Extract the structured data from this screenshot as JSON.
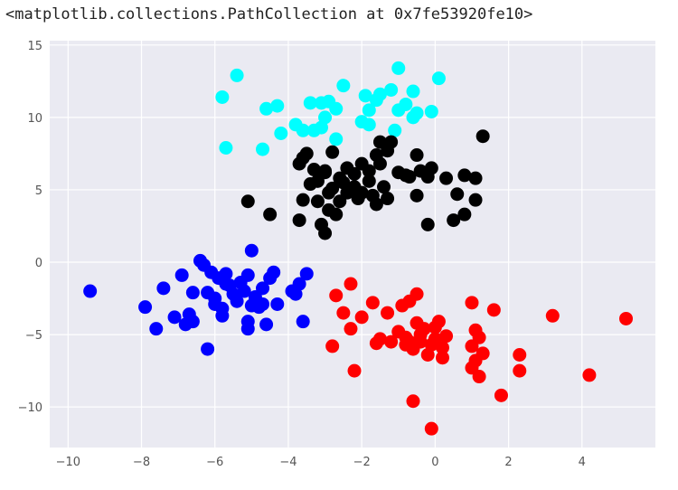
{
  "output_text": "<matplotlib.collections.PathCollection at 0x7fe53920fe10>",
  "chart_data": {
    "type": "scatter",
    "title": "",
    "xlabel": "",
    "ylabel": "",
    "xlim": [
      -10.5,
      6
    ],
    "ylim": [
      -12.8,
      15.3
    ],
    "xticks": [
      -10,
      -8,
      -6,
      -4,
      -2,
      0,
      2,
      4
    ],
    "yticks": [
      -10,
      -5,
      0,
      5,
      10,
      15
    ],
    "grid": true,
    "background": "#eaeaf2",
    "series": [
      {
        "color": "#00ffff",
        "points": [
          [
            -5.4,
            12.9
          ],
          [
            -5.8,
            11.4
          ],
          [
            -4.6,
            10.6
          ],
          [
            -4.3,
            10.8
          ],
          [
            -4.2,
            8.9
          ],
          [
            -3.8,
            9.5
          ],
          [
            -3.6,
            9.1
          ],
          [
            -3.4,
            11.0
          ],
          [
            -3.1,
            11.0
          ],
          [
            -2.9,
            11.1
          ],
          [
            -3.0,
            10.0
          ],
          [
            -2.7,
            10.6
          ],
          [
            -2.5,
            12.2
          ],
          [
            -3.1,
            9.3
          ],
          [
            -3.3,
            9.1
          ],
          [
            -2.7,
            8.5
          ],
          [
            -1.9,
            11.5
          ],
          [
            -1.6,
            11.2
          ],
          [
            -1.8,
            10.5
          ],
          [
            -1.5,
            11.6
          ],
          [
            -1.2,
            11.9
          ],
          [
            -1.0,
            10.5
          ],
          [
            -1.0,
            13.4
          ],
          [
            -0.8,
            10.9
          ],
          [
            -0.6,
            11.8
          ],
          [
            -0.6,
            10.0
          ],
          [
            -0.5,
            10.3
          ],
          [
            0.1,
            12.7
          ],
          [
            -0.1,
            10.4
          ],
          [
            -2.0,
            9.7
          ],
          [
            -1.8,
            9.5
          ],
          [
            -1.1,
            9.1
          ],
          [
            -5.7,
            7.9
          ],
          [
            -4.7,
            7.8
          ]
        ]
      },
      {
        "color": "#000000",
        "points": [
          [
            -5.1,
            4.2
          ],
          [
            -4.5,
            3.3
          ],
          [
            -3.7,
            6.8
          ],
          [
            -3.5,
            7.5
          ],
          [
            -3.3,
            6.4
          ],
          [
            -3.0,
            6.2
          ],
          [
            -3.2,
            5.6
          ],
          [
            -2.8,
            7.6
          ],
          [
            -2.6,
            5.8
          ],
          [
            -2.4,
            6.5
          ],
          [
            -2.2,
            6.1
          ],
          [
            -2.0,
            6.8
          ],
          [
            -1.8,
            6.3
          ],
          [
            -1.6,
            7.4
          ],
          [
            -1.5,
            8.3
          ],
          [
            -1.2,
            8.3
          ],
          [
            -1.4,
            5.2
          ],
          [
            -1.3,
            4.4
          ],
          [
            -1.0,
            6.2
          ],
          [
            -0.7,
            5.9
          ],
          [
            -0.5,
            7.4
          ],
          [
            -0.4,
            6.3
          ],
          [
            -0.2,
            5.9
          ],
          [
            -0.1,
            6.5
          ],
          [
            0.3,
            5.8
          ],
          [
            0.6,
            4.7
          ],
          [
            0.8,
            6.0
          ],
          [
            1.1,
            5.8
          ],
          [
            1.3,
            8.7
          ],
          [
            1.1,
            4.3
          ],
          [
            0.5,
            2.9
          ],
          [
            0.8,
            3.3
          ],
          [
            -0.2,
            2.6
          ],
          [
            -0.5,
            4.6
          ],
          [
            -2.9,
            3.6
          ],
          [
            -3.0,
            2.0
          ],
          [
            -3.1,
            2.6
          ],
          [
            -3.6,
            4.3
          ],
          [
            -3.2,
            4.2
          ],
          [
            -3.7,
            2.9
          ],
          [
            -2.7,
            3.3
          ],
          [
            -2.1,
            4.4
          ],
          [
            -1.7,
            4.6
          ],
          [
            -1.6,
            4.0
          ],
          [
            -2.5,
            5.5
          ],
          [
            -2.2,
            5.2
          ],
          [
            -2.0,
            4.8
          ],
          [
            -1.8,
            5.6
          ],
          [
            -2.4,
            4.8
          ],
          [
            -2.6,
            4.2
          ],
          [
            -3.4,
            5.4
          ],
          [
            -3.0,
            6.3
          ],
          [
            -2.8,
            5.1
          ],
          [
            -1.5,
            6.8
          ],
          [
            -1.3,
            7.7
          ],
          [
            -0.8,
            6.0
          ],
          [
            -3.6,
            7.2
          ],
          [
            -2.9,
            4.8
          ]
        ]
      },
      {
        "color": "#0000ff",
        "points": [
          [
            -9.4,
            -2.0
          ],
          [
            -7.9,
            -3.1
          ],
          [
            -7.6,
            -4.6
          ],
          [
            -7.4,
            -1.8
          ],
          [
            -7.1,
            -3.8
          ],
          [
            -6.9,
            -0.9
          ],
          [
            -6.8,
            -4.3
          ],
          [
            -6.7,
            -3.6
          ],
          [
            -6.6,
            -4.1
          ],
          [
            -6.6,
            -2.1
          ],
          [
            -6.4,
            0.1
          ],
          [
            -6.3,
            -0.2
          ],
          [
            -6.2,
            -2.1
          ],
          [
            -6.1,
            -0.7
          ],
          [
            -6.0,
            -2.5
          ],
          [
            -5.9,
            -1.1
          ],
          [
            -5.8,
            -3.2
          ],
          [
            -5.8,
            -3.7
          ],
          [
            -5.7,
            -0.8
          ],
          [
            -5.6,
            -1.6
          ],
          [
            -5.5,
            -2.2
          ],
          [
            -5.4,
            -2.7
          ],
          [
            -5.3,
            -1.4
          ],
          [
            -5.2,
            -2.0
          ],
          [
            -5.1,
            -0.9
          ],
          [
            -5.1,
            -4.6
          ],
          [
            -5.0,
            0.8
          ],
          [
            -5.0,
            -3.0
          ],
          [
            -4.9,
            -2.4
          ],
          [
            -4.8,
            -3.1
          ],
          [
            -4.7,
            -1.8
          ],
          [
            -4.6,
            -4.3
          ],
          [
            -4.5,
            -1.1
          ],
          [
            -4.4,
            -0.7
          ],
          [
            -4.3,
            -2.9
          ],
          [
            -3.9,
            -2.0
          ],
          [
            -3.7,
            -1.5
          ],
          [
            -3.6,
            -4.1
          ],
          [
            -3.5,
            -0.8
          ],
          [
            -6.2,
            -6.0
          ],
          [
            -5.1,
            -4.1
          ],
          [
            -6.0,
            -2.9
          ],
          [
            -5.7,
            -1.5
          ],
          [
            -3.8,
            -2.2
          ],
          [
            -4.7,
            -2.9
          ]
        ]
      },
      {
        "color": "#ff0000",
        "points": [
          [
            -2.8,
            -5.8
          ],
          [
            -2.7,
            -2.3
          ],
          [
            -2.5,
            -3.5
          ],
          [
            -2.3,
            -4.6
          ],
          [
            -2.3,
            -1.5
          ],
          [
            -2.2,
            -7.5
          ],
          [
            -2.0,
            -3.8
          ],
          [
            -1.7,
            -2.8
          ],
          [
            -1.6,
            -5.6
          ],
          [
            -1.5,
            -5.3
          ],
          [
            -1.3,
            -3.5
          ],
          [
            -1.2,
            -5.5
          ],
          [
            -1.0,
            -4.8
          ],
          [
            -0.8,
            -5.2
          ],
          [
            -0.7,
            -5.5
          ],
          [
            -0.7,
            -2.7
          ],
          [
            -0.6,
            -9.6
          ],
          [
            -0.5,
            -2.2
          ],
          [
            -0.5,
            -4.2
          ],
          [
            -0.4,
            -5.0
          ],
          [
            -0.3,
            -4.6
          ],
          [
            -0.2,
            -6.4
          ],
          [
            -0.1,
            -5.7
          ],
          [
            0.0,
            -4.5
          ],
          [
            0.1,
            -4.1
          ],
          [
            0.2,
            -5.9
          ],
          [
            0.2,
            -6.6
          ],
          [
            0.3,
            -5.1
          ],
          [
            -0.1,
            -11.5
          ],
          [
            1.0,
            -7.3
          ],
          [
            1.0,
            -5.8
          ],
          [
            1.1,
            -4.7
          ],
          [
            1.2,
            -5.2
          ],
          [
            1.2,
            -7.9
          ],
          [
            1.3,
            -6.3
          ],
          [
            1.0,
            -2.8
          ],
          [
            1.6,
            -3.3
          ],
          [
            1.8,
            -9.2
          ],
          [
            2.3,
            -6.4
          ],
          [
            2.3,
            -7.5
          ],
          [
            3.2,
            -3.7
          ],
          [
            4.2,
            -7.8
          ],
          [
            5.2,
            -3.9
          ],
          [
            -0.8,
            -5.7
          ],
          [
            -0.4,
            -5.5
          ],
          [
            0.0,
            -5.3
          ],
          [
            1.1,
            -6.8
          ],
          [
            -0.9,
            -3.0
          ],
          [
            -0.6,
            -6.0
          ]
        ]
      }
    ]
  }
}
